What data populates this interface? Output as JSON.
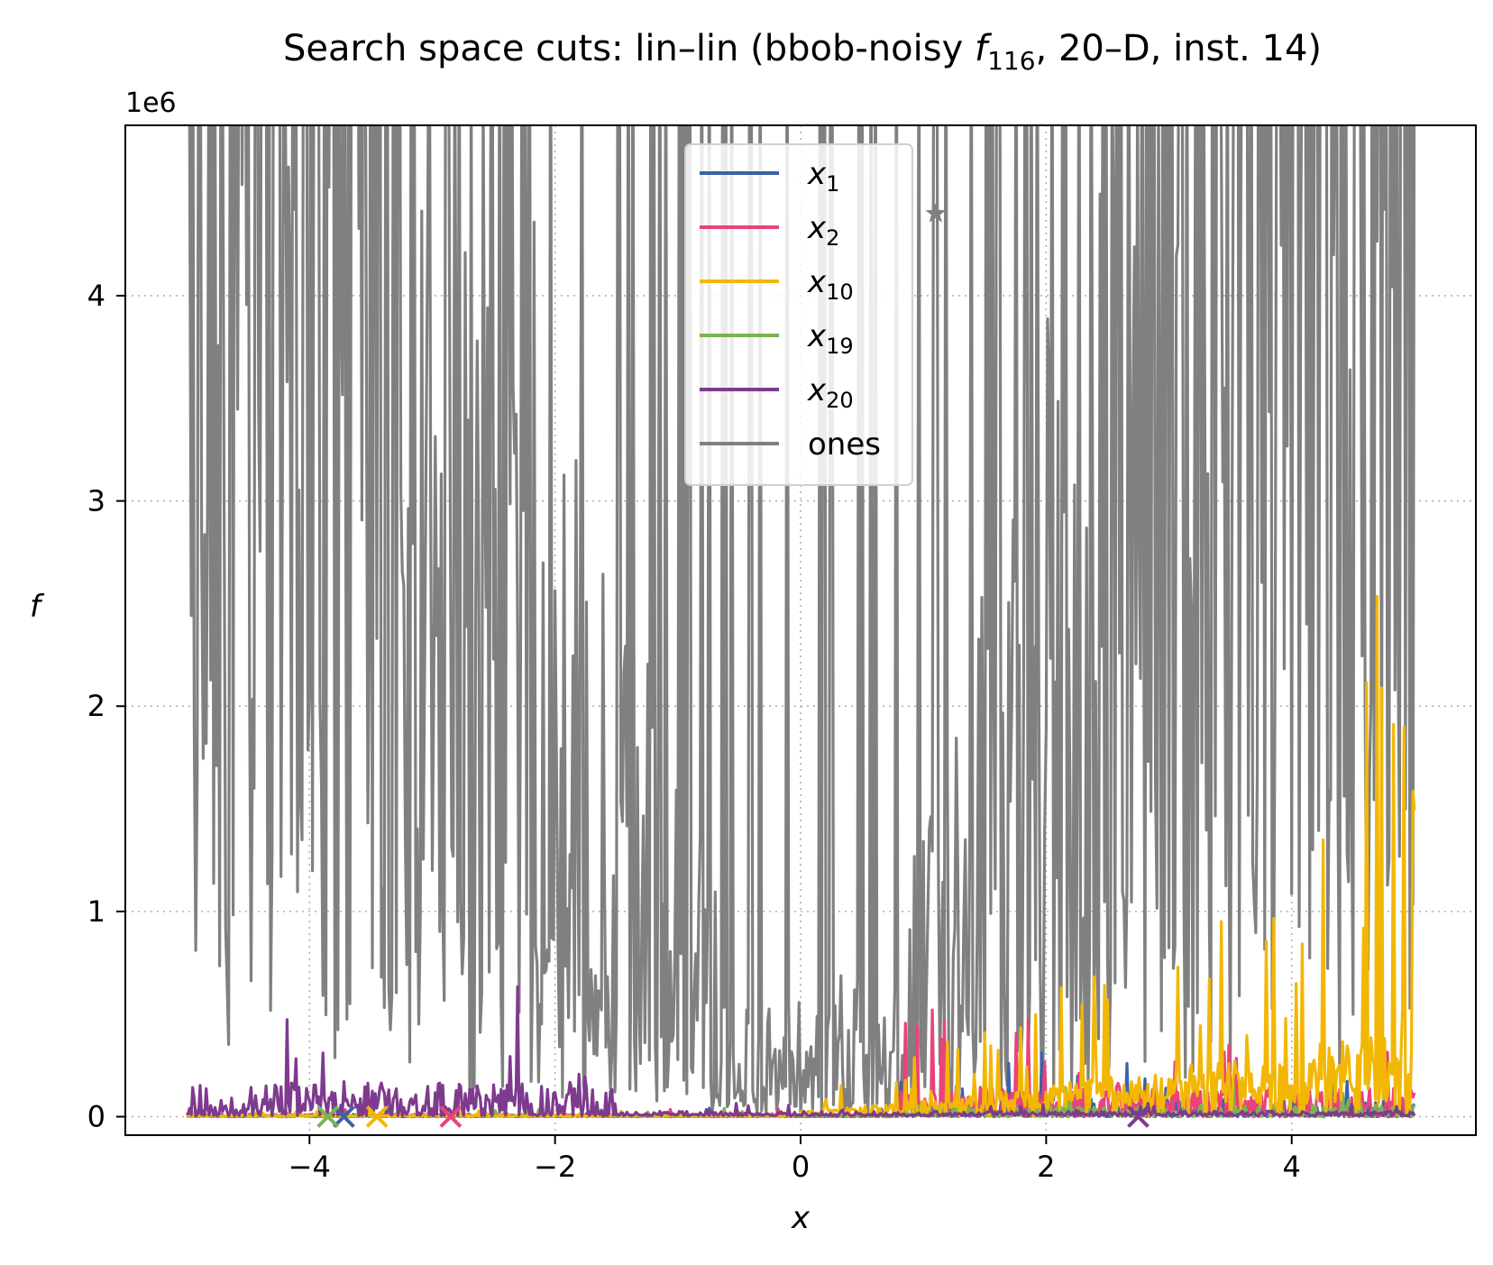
{
  "chart_data": {
    "type": "line",
    "title": {
      "prefix": "Search space cuts: lin–lin (bbob-noisy ",
      "func_symbol": "f",
      "func_subscript": "116",
      "suffix": ", 20–D, inst. 14)"
    },
    "xlabel": "x",
    "ylabel": "f",
    "y_offset_label": "1e6",
    "xlim": [
      -5.5,
      5.5
    ],
    "ylim": [
      -90000,
      4830000
    ],
    "x_ticks": [
      -4,
      -2,
      0,
      2,
      4
    ],
    "x_tick_labels": [
      "−4",
      "−2",
      "0",
      "2",
      "4"
    ],
    "y_ticks": [
      0,
      1000000,
      2000000,
      3000000,
      4000000
    ],
    "y_tick_labels": [
      "0",
      "1",
      "2",
      "3",
      "4"
    ],
    "grid": true,
    "legend_position": "top-center",
    "series": [
      {
        "name": "x",
        "sub": "1",
        "color": "#3a62a6",
        "min_x": -3.72
      },
      {
        "name": "x",
        "sub": "2",
        "color": "#e8437a",
        "min_x": -2.85
      },
      {
        "name": "x",
        "sub": "10",
        "color": "#f2b705",
        "min_x": -3.45
      },
      {
        "name": "x",
        "sub": "19",
        "color": "#7ab356",
        "min_x": -3.85
      },
      {
        "name": "x",
        "sub": "20",
        "color": "#7e3b8e",
        "min_x": 2.75
      },
      {
        "name": "ones",
        "sub": "",
        "color": "#808080",
        "min_x": 1.1,
        "min_y": 4400000
      }
    ]
  }
}
